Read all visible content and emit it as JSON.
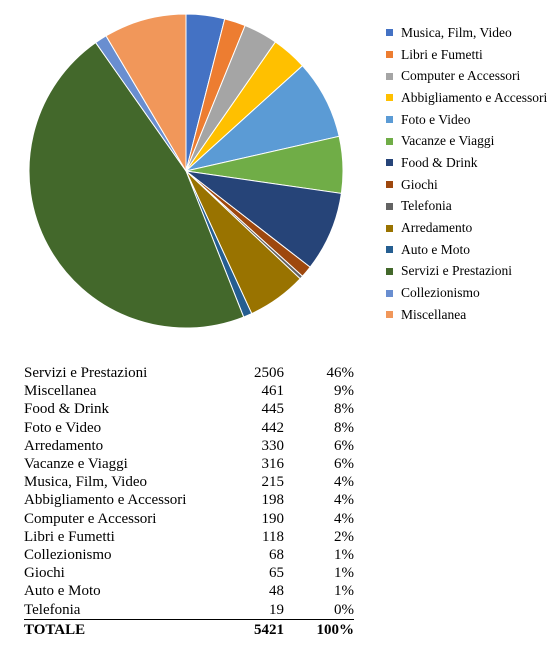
{
  "chart_data": {
    "type": "pie",
    "title": "",
    "legend_position": "right",
    "slices": [
      {
        "label": "Musica, Film, Video",
        "value": 215,
        "color": "#4472c4"
      },
      {
        "label": "Libri e Fumetti",
        "value": 118,
        "color": "#ed7d31"
      },
      {
        "label": "Computer e Accessori",
        "value": 190,
        "color": "#a5a5a5"
      },
      {
        "label": "Abbigliamento e Accessori",
        "value": 198,
        "color": "#ffc000"
      },
      {
        "label": "Foto e Video",
        "value": 442,
        "color": "#5b9bd5"
      },
      {
        "label": "Vacanze e Viaggi",
        "value": 316,
        "color": "#70ad47"
      },
      {
        "label": "Food & Drink",
        "value": 445,
        "color": "#264478"
      },
      {
        "label": "Giochi",
        "value": 65,
        "color": "#9e480e"
      },
      {
        "label": "Telefonia",
        "value": 19,
        "color": "#636363"
      },
      {
        "label": "Arredamento",
        "value": 330,
        "color": "#997300"
      },
      {
        "label": "Auto e Moto",
        "value": 48,
        "color": "#255e91"
      },
      {
        "label": "Servizi e Prestazioni",
        "value": 2506,
        "color": "#43682b"
      },
      {
        "label": "Collezionismo",
        "value": 68,
        "color": "#698ed0"
      },
      {
        "label": "Miscellanea",
        "value": 461,
        "color": "#f1975a"
      }
    ]
  },
  "table": {
    "rows": [
      {
        "name": "Servizi e Prestazioni",
        "count": "2506",
        "pct": "46%"
      },
      {
        "name": "Miscellanea",
        "count": "461",
        "pct": "9%"
      },
      {
        "name": "Food & Drink",
        "count": "445",
        "pct": "8%"
      },
      {
        "name": "Foto e Video",
        "count": "442",
        "pct": "8%"
      },
      {
        "name": "Arredamento",
        "count": "330",
        "pct": "6%"
      },
      {
        "name": "Vacanze e Viaggi",
        "count": "316",
        "pct": "6%"
      },
      {
        "name": "Musica, Film, Video",
        "count": "215",
        "pct": "4%"
      },
      {
        "name": "Abbigliamento e Accessori",
        "count": "198",
        "pct": "4%"
      },
      {
        "name": "Computer e Accessori",
        "count": "190",
        "pct": "4%"
      },
      {
        "name": "Libri e Fumetti",
        "count": "118",
        "pct": "2%"
      },
      {
        "name": "Collezionismo",
        "count": "68",
        "pct": "1%"
      },
      {
        "name": "Giochi",
        "count": "65",
        "pct": "1%"
      },
      {
        "name": "Auto e Moto",
        "count": "48",
        "pct": "1%"
      },
      {
        "name": "Telefonia",
        "count": "19",
        "pct": "0%"
      }
    ],
    "total": {
      "name": "TOTALE",
      "count": "5421",
      "pct": "100%"
    }
  }
}
